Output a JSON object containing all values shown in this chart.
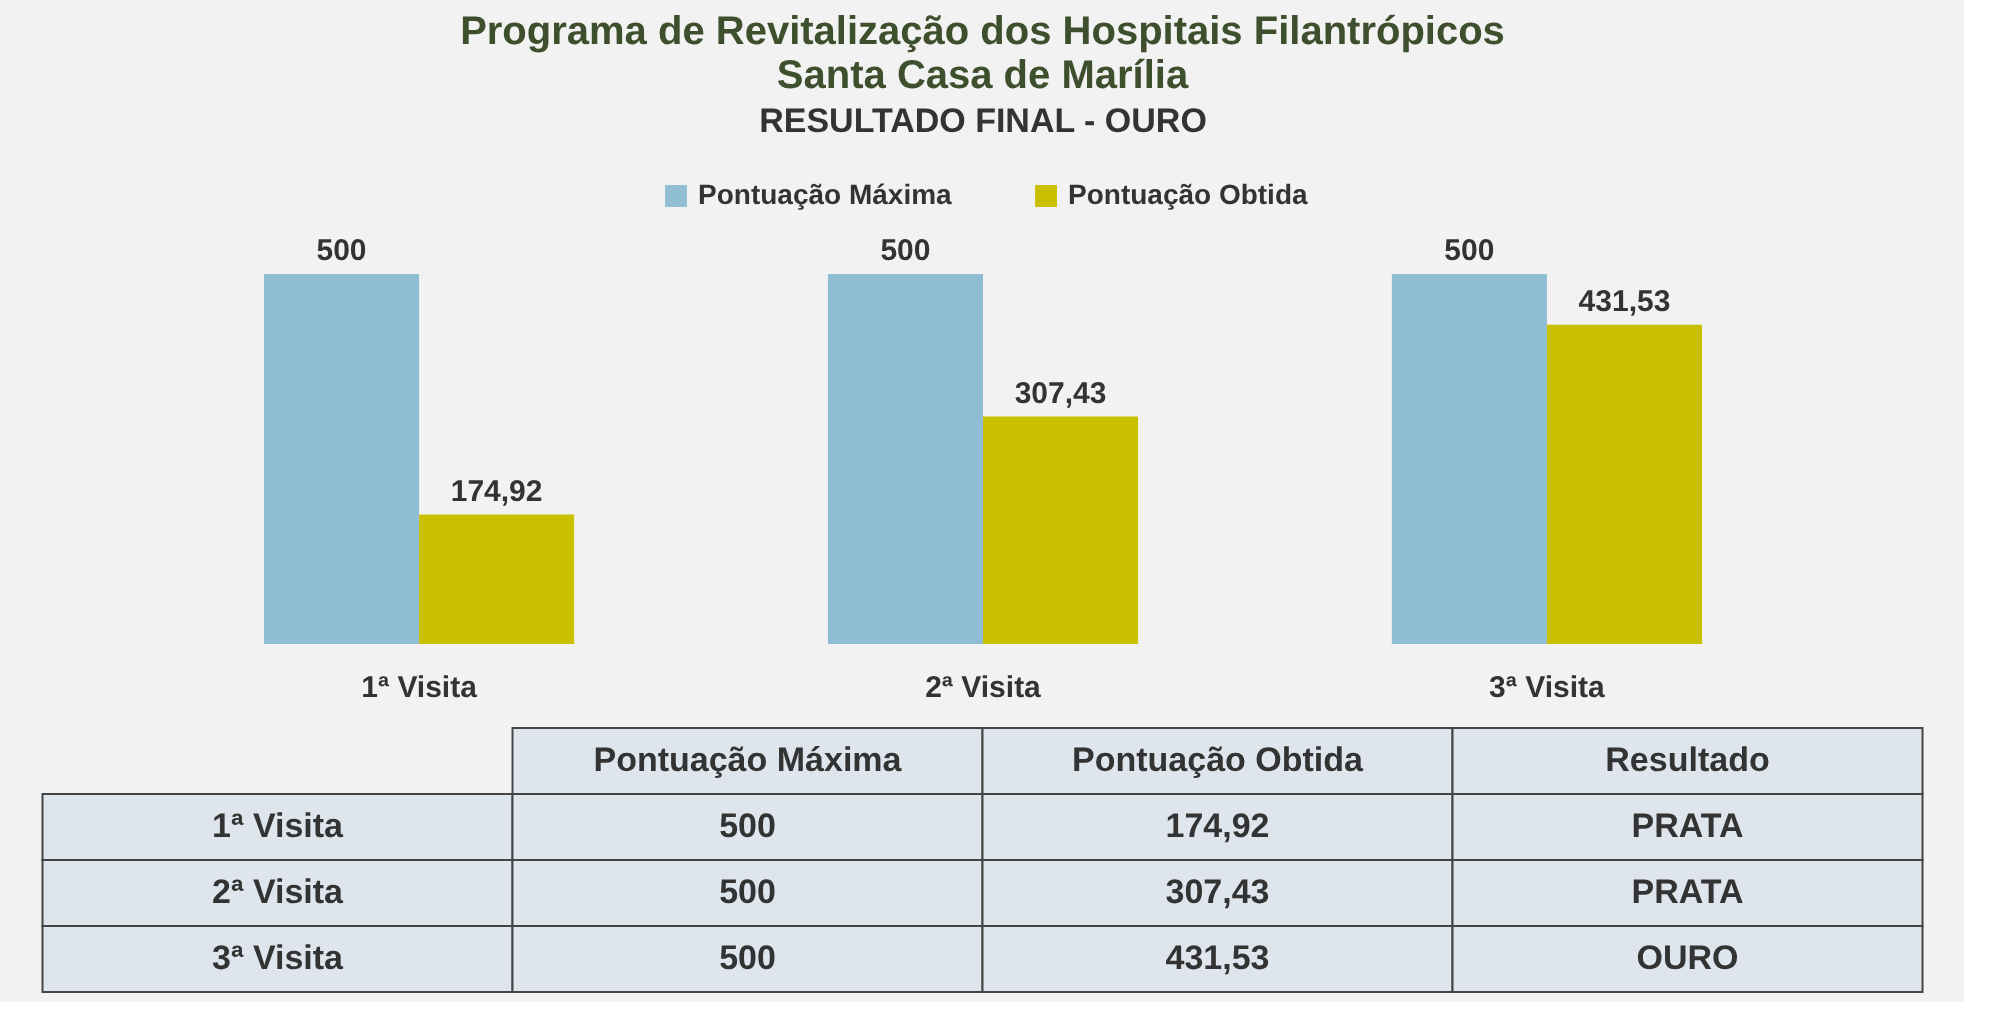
{
  "chart_data": {
    "type": "bar",
    "title": "Programa de Revitalização dos Hospitais Filantrópicos",
    "subtitle": "Santa Casa de Marília",
    "annotations": [
      "RESULTADO FINAL - OURO",
      "Resultado",
      "PRATA",
      "PRATA",
      "OURO"
    ],
    "categories": [
      "1ª Visita",
      "2ª Visita",
      "3ª Visita"
    ],
    "series": [
      {
        "name": "Pontuação Máxima",
        "color": "#8fbdd3",
        "values": [
          500,
          500,
          500
        ],
        "value_labels": [
          "500",
          "500",
          "500"
        ]
      },
      {
        "name": "Pontuação Obtida",
        "color": "#c9c000",
        "values": [
          174.92,
          307.43,
          431.53
        ],
        "value_labels": [
          "174,92",
          "307,43",
          "431,53"
        ]
      }
    ],
    "legend": "top",
    "tick_labels": "x"
  }
}
